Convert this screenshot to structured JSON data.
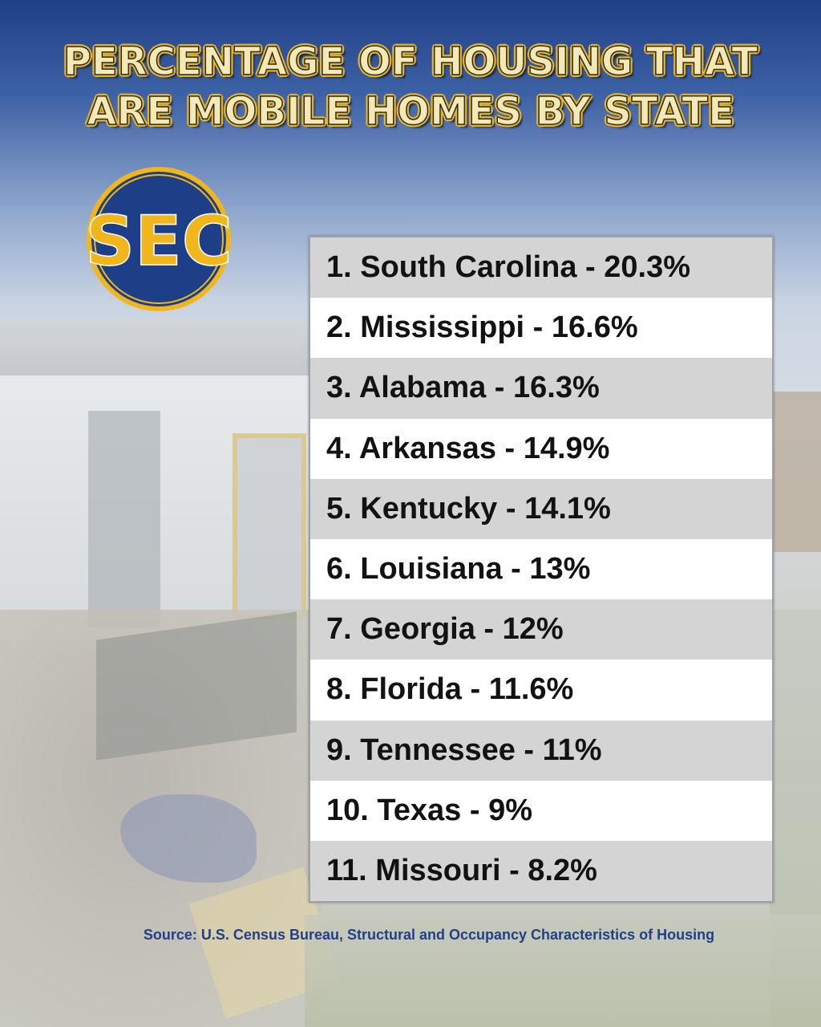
{
  "title": {
    "line1": "PERCENTAGE OF HOUSING THAT",
    "line2": "ARE MOBILE HOMES BY STATE"
  },
  "logo": {
    "text": "SEC",
    "icon": "sec-conference-logo",
    "colors": {
      "ring": "#f2b61d",
      "field": "#1d3f87",
      "letters": "#f2b61d"
    }
  },
  "ranking": [
    "1. South Carolina - 20.3%",
    "2. Mississippi - 16.6%",
    "3. Alabama - 16.3%",
    "4. Arkansas - 14.9%",
    "5. Kentucky - 14.1%",
    "6. Louisiana - 13%",
    "7. Georgia - 12%",
    "8. Florida - 11.6%",
    "9. Tennessee - 11%",
    "10. Texas - 9%",
    "11. Missouri - 8.2%"
  ],
  "source": "Source: U.S. Census Bureau, Structural and Occupancy Characteristics of Housing",
  "colors": {
    "title_fill": "#f5e9b3",
    "title_outline": "#e7b428",
    "row_alt": "#d4d4d4",
    "row": "#ffffff",
    "source_text": "#213f88"
  }
}
